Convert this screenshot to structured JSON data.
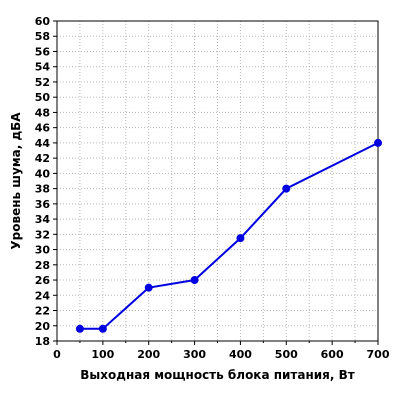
{
  "chart_data": {
    "type": "line",
    "title": "",
    "xlabel": "Выходная мощность блока питания, Вт",
    "ylabel": "Уровень шума, дБА",
    "xlim": [
      0,
      700
    ],
    "ylim": [
      18,
      60
    ],
    "x_ticks": [
      0,
      100,
      200,
      300,
      400,
      500,
      600,
      700
    ],
    "y_ticks": [
      18,
      20,
      22,
      24,
      26,
      28,
      30,
      32,
      34,
      36,
      38,
      40,
      42,
      44,
      46,
      48,
      50,
      52,
      54,
      56,
      58,
      60
    ],
    "grid": true,
    "legend": "none",
    "series": [
      {
        "color": "#0000e0",
        "points": [
          {
            "x": 50,
            "y": 19.6
          },
          {
            "x": 100,
            "y": 19.6
          },
          {
            "x": 200,
            "y": 25.0
          },
          {
            "x": 300,
            "y": 26.0
          },
          {
            "x": 400,
            "y": 31.5
          },
          {
            "x": 500,
            "y": 38.0
          },
          {
            "x": 700,
            "y": 44.0
          }
        ]
      }
    ]
  }
}
